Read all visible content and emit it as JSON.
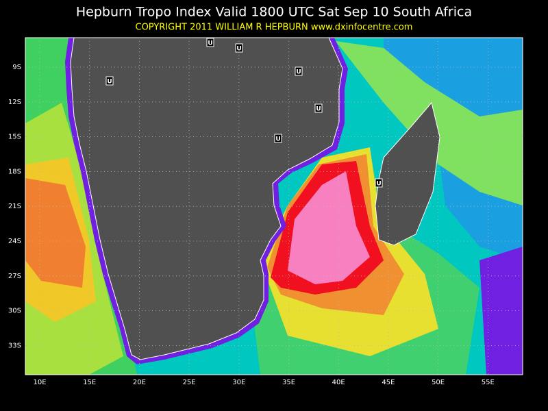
{
  "map": {
    "title": "Hepburn Tropo Index Valid 1800 UTC Sat Sep 10 South Africa",
    "subtitle": "COPYRIGHT 2011   WILLIAM R HEPBURN   www.dxinfocentre.com",
    "x_labels": [
      "10E",
      "15E",
      "20E",
      "25E",
      "30E",
      "35E",
      "40E",
      "45E",
      "50E",
      "55E"
    ],
    "y_labels": [
      "9S",
      "12S",
      "15S",
      "18S",
      "21S",
      "24S",
      "27S",
      "30S",
      "33S"
    ],
    "markers": [
      "U",
      "U",
      "U",
      "U",
      "U",
      "U",
      "U"
    ]
  }
}
